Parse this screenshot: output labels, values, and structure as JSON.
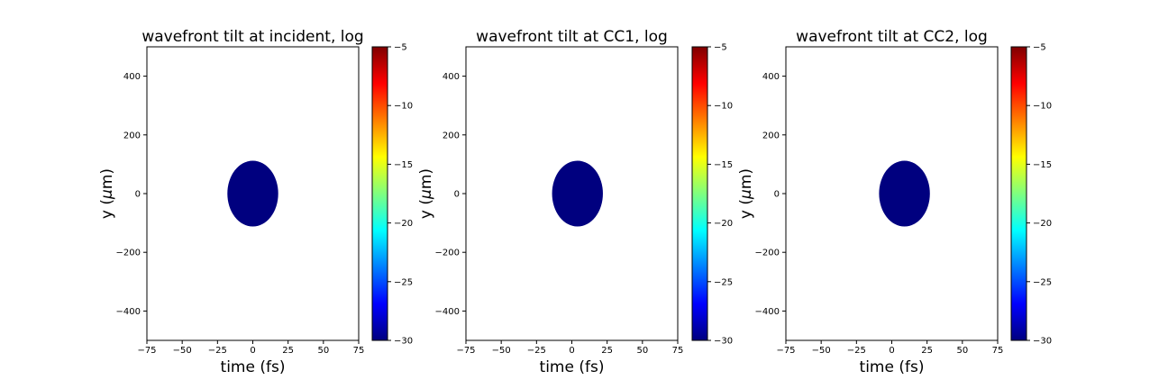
{
  "chart_data": [
    {
      "type": "heatmap",
      "title": "wavefront tilt at incident, log",
      "xlabel": "time (fs)",
      "ylabel_text": "y (",
      "ylabel_mu": "μ",
      "ylabel_unit": "m)",
      "xlim": [
        -75,
        75
      ],
      "ylim": [
        -500,
        500
      ],
      "xticks": [
        -75,
        -50,
        -25,
        0,
        25,
        50,
        75
      ],
      "yticks": [
        -400,
        -200,
        0,
        200,
        400
      ],
      "blob": {
        "center_x": 0,
        "center_y": 0,
        "half_width_x": 18,
        "half_height_y": 112,
        "value": -30
      },
      "colorbar": {
        "min": -30,
        "max": -5,
        "ticks": [
          -5,
          -10,
          -15,
          -20,
          -25,
          -30
        ],
        "colormap": "jet"
      },
      "grid": false
    },
    {
      "type": "heatmap",
      "title": "wavefront tilt at CC1, log",
      "xlabel": "time (fs)",
      "ylabel_text": "y (",
      "ylabel_mu": "μ",
      "ylabel_unit": "m)",
      "xlim": [
        -75,
        75
      ],
      "ylim": [
        -500,
        500
      ],
      "xticks": [
        -75,
        -50,
        -25,
        0,
        25,
        50,
        75
      ],
      "yticks": [
        -400,
        -200,
        0,
        200,
        400
      ],
      "blob": {
        "center_x": 4,
        "center_y": 0,
        "half_width_x": 18,
        "half_height_y": 112,
        "value": -30
      },
      "colorbar": {
        "min": -30,
        "max": -5,
        "ticks": [
          -5,
          -10,
          -15,
          -20,
          -25,
          -30
        ],
        "colormap": "jet"
      },
      "grid": false
    },
    {
      "type": "heatmap",
      "title": "wavefront tilt at CC2, log",
      "xlabel": "time (fs)",
      "ylabel_text": "y (",
      "ylabel_mu": "μ",
      "ylabel_unit": "m)",
      "xlim": [
        -75,
        75
      ],
      "ylim": [
        -500,
        500
      ],
      "xticks": [
        -75,
        -50,
        -25,
        0,
        25,
        50,
        75
      ],
      "yticks": [
        -400,
        -200,
        0,
        200,
        400
      ],
      "blob": {
        "center_x": 9,
        "center_y": 0,
        "half_width_x": 18,
        "half_height_y": 112,
        "value": -30
      },
      "colorbar": {
        "min": -30,
        "max": -5,
        "ticks": [
          -5,
          -10,
          -15,
          -20,
          -25,
          -30
        ],
        "colormap": "jet"
      },
      "grid": false
    }
  ],
  "colors": {
    "background": "#ffffff",
    "axes": "#000000",
    "jet_stops": [
      "#00007f",
      "#0000ff",
      "#007fff",
      "#00ffff",
      "#7fff7f",
      "#ffff00",
      "#ff7f00",
      "#ff0000",
      "#7f0000"
    ]
  }
}
